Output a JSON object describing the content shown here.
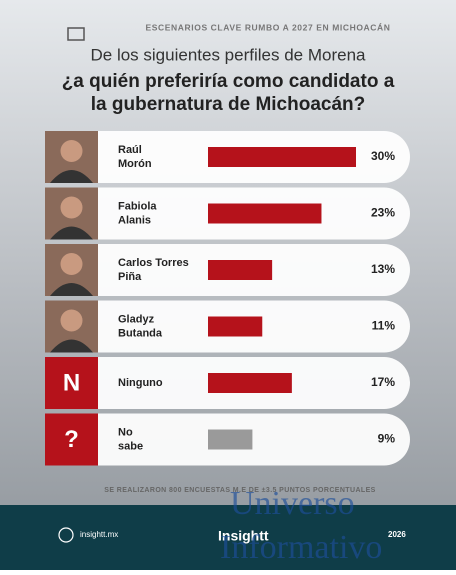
{
  "chart_data": {
    "type": "hbar",
    "kicker": "ESCENARIOS CLAVE RUMBO A 2027 EN MICHOACÁN",
    "subtitle": "De los siguientes perfiles de Morena",
    "title": "¿a quién preferiría como candidato a la gubernatura de Michoacán?",
    "categories": [
      "Raúl Morón",
      "Fabiola Alanis",
      "Carlos Torres Piña",
      "Gladyz Butanda",
      "Ninguno",
      "No sabe"
    ],
    "icons": [
      null,
      null,
      null,
      null,
      "N",
      "?"
    ],
    "values": [
      30,
      23,
      13,
      11,
      17,
      9
    ],
    "value_labels": [
      "30%",
      "23%",
      "13%",
      "11%",
      "17%",
      "9%"
    ],
    "colors": [
      "#b5121b",
      "#b5121b",
      "#b5121b",
      "#b5121b",
      "#b5121b",
      "#9a9a9a"
    ],
    "note": "SE REALIZARON 800 ENCUESTAS M.E DE ±3.5 PUNTOS PORCENTUALES",
    "site": "insightt.mx",
    "brand": "Insightt",
    "year": "2026",
    "watermark": [
      "Universo",
      "Informativo"
    ]
  }
}
